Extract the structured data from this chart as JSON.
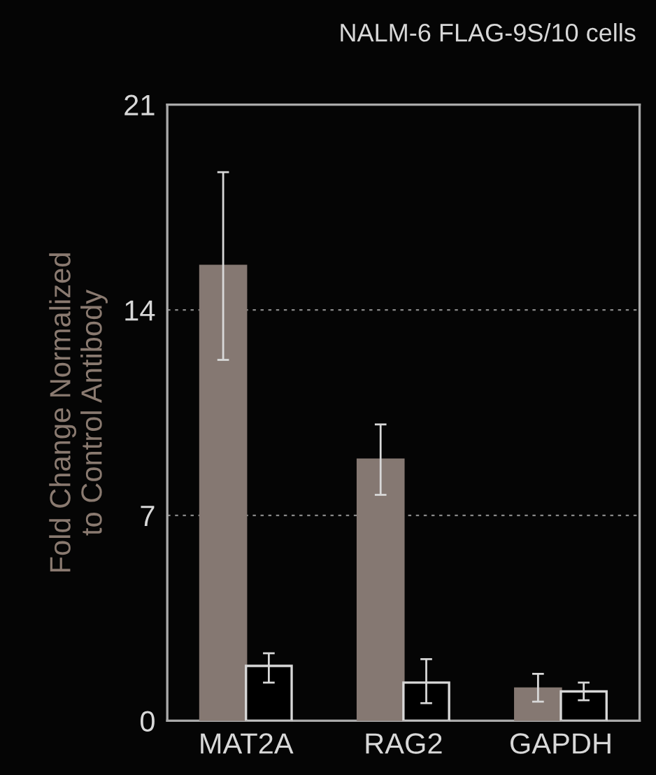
{
  "chart_data": {
    "type": "bar",
    "title": "NALM-6 FLAG-9S/10 cells",
    "ylabel": "Fold Change Normalized\nto Control Antibody",
    "categories": [
      "MAT2A",
      "RAG2",
      "GAPDH"
    ],
    "series": [
      {
        "color": "#857872",
        "values": [
          15.5,
          8.9,
          1.1
        ],
        "errors": [
          [
            12.3,
            18.7
          ],
          [
            7.7,
            10.1
          ],
          [
            0.65,
            1.6
          ]
        ]
      },
      {
        "color": "#000000",
        "values": [
          1.87,
          1.3,
          1.0
        ],
        "errors": [
          [
            1.3,
            2.3
          ],
          [
            0.6,
            2.1
          ],
          [
            0.7,
            1.3
          ]
        ]
      }
    ],
    "ylim": [
      0,
      21
    ],
    "yticks": [
      0,
      7,
      14,
      21
    ],
    "grid": "y",
    "legend": false
  }
}
